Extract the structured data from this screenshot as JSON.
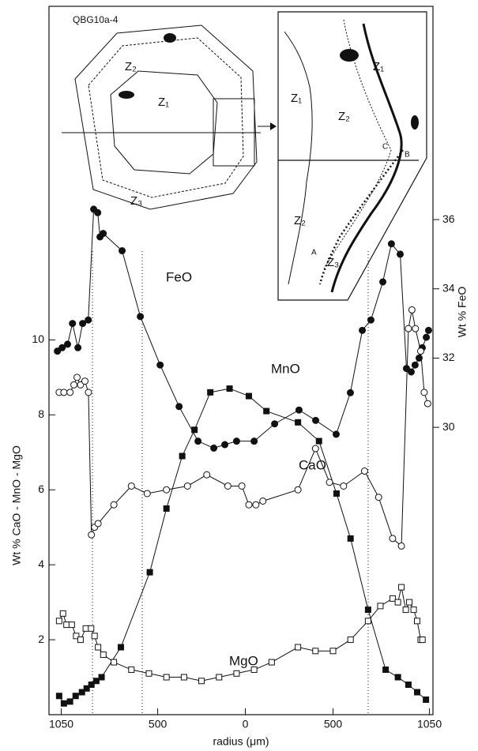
{
  "chart_data": {
    "type": "line",
    "x_label": "radius (μm)",
    "y_label": "Wt % CaO - MnO - MgO",
    "y2_label": "Wt % FeO",
    "xlim": [
      -1120,
      1070
    ],
    "xticks": [
      {
        "value": -1050,
        "label": "1050"
      },
      {
        "value": -500,
        "label": "500"
      },
      0,
      500,
      1050
    ],
    "ylim": [
      0,
      18.9
    ],
    "yticks": [
      2,
      4,
      6,
      8,
      10
    ],
    "y2lim": [
      21.7,
      42.16
    ],
    "y2ticks": [
      30,
      32,
      34,
      36
    ],
    "grid": false,
    "series": [
      {
        "name": "FeO",
        "color": "#111111",
        "axis": "y2",
        "marker": "circle",
        "filled": true,
        "x": [
          -1072,
          -1045,
          -1014,
          -986,
          -955,
          -928,
          -896,
          -865,
          -842,
          -829,
          -811,
          -703,
          -599,
          -486,
          -378,
          -270,
          -180,
          -117,
          -50,
          50,
          167,
          306,
          401,
          518,
          599,
          667,
          716,
          784,
          833,
          883,
          919,
          946,
          968,
          991,
          1009,
          1032,
          1045
        ],
        "values": [
          32.2,
          32.3,
          32.4,
          33.0,
          32.3,
          33.0,
          33.1,
          36.3,
          36.2,
          35.5,
          35.6,
          35.1,
          33.2,
          31.8,
          30.6,
          29.6,
          29.4,
          29.5,
          29.6,
          29.6,
          30.1,
          30.5,
          30.2,
          29.8,
          31.0,
          32.8,
          33.1,
          34.2,
          35.3,
          35.0,
          31.7,
          31.6,
          31.8,
          32.0,
          32.3,
          32.6,
          32.8
        ]
      },
      {
        "name": "MnO",
        "color": "#111111",
        "axis": "y",
        "marker": "square",
        "filled": true,
        "x": [
          -1062,
          -1035,
          -1000,
          -968,
          -932,
          -905,
          -878,
          -850,
          -820,
          -710,
          -545,
          -450,
          -360,
          -290,
          -200,
          -90,
          20,
          120,
          300,
          420,
          520,
          600,
          700,
          800,
          870,
          930,
          980,
          1030
        ],
        "values": [
          0.5,
          0.3,
          0.35,
          0.5,
          0.6,
          0.7,
          0.8,
          0.9,
          1.0,
          1.8,
          3.8,
          5.5,
          6.9,
          7.6,
          8.6,
          8.7,
          8.5,
          8.1,
          7.8,
          7.3,
          5.9,
          4.7,
          2.8,
          1.2,
          1.0,
          0.8,
          0.6,
          0.4
        ]
      },
      {
        "name": "CaO",
        "color": "#111111",
        "axis": "y",
        "marker": "circle",
        "filled": false,
        "x": [
          -1062,
          -1035,
          -1000,
          -978,
          -960,
          -940,
          -915,
          -895,
          -878,
          -860,
          -840,
          -750,
          -650,
          -560,
          -450,
          -330,
          -220,
          -100,
          -20,
          20,
          60,
          100,
          300,
          400,
          480,
          560,
          680,
          760,
          840,
          890,
          930,
          950,
          970,
          1000,
          1020,
          1040
        ],
        "values": [
          8.6,
          8.6,
          8.6,
          8.8,
          9.0,
          8.8,
          8.9,
          8.6,
          4.8,
          5.0,
          5.1,
          5.6,
          6.1,
          5.9,
          6.0,
          6.1,
          6.4,
          6.1,
          6.1,
          5.6,
          5.6,
          5.7,
          6.0,
          7.1,
          6.2,
          6.1,
          6.5,
          5.8,
          4.7,
          4.5,
          10.3,
          10.8,
          10.3,
          9.7,
          8.6,
          8.3
        ]
      },
      {
        "name": "MgO",
        "color": "#111111",
        "axis": "y",
        "marker": "square",
        "filled": false,
        "x": [
          -1062,
          -1040,
          -1020,
          -990,
          -965,
          -940,
          -910,
          -880,
          -860,
          -840,
          -810,
          -750,
          -650,
          -550,
          -450,
          -350,
          -250,
          -150,
          -50,
          50,
          150,
          300,
          400,
          500,
          600,
          700,
          770,
          840,
          870,
          890,
          915,
          935,
          960,
          980,
          1000,
          1010
        ],
        "values": [
          2.5,
          2.7,
          2.4,
          2.4,
          2.1,
          2.0,
          2.3,
          2.3,
          2.1,
          1.8,
          1.6,
          1.4,
          1.2,
          1.1,
          1.0,
          1.0,
          0.9,
          1.0,
          1.1,
          1.2,
          1.4,
          1.8,
          1.7,
          1.7,
          2.0,
          2.5,
          2.9,
          3.1,
          3.0,
          3.4,
          2.8,
          3.0,
          2.8,
          2.5,
          2.0,
          2.0
        ]
      }
    ],
    "inset": {
      "title": "QBG10a-4",
      "labels": [
        "Z₂",
        "Z₁",
        "Z₃",
        "Z₁",
        "Z₂",
        "Z₁",
        "C",
        "B",
        "Z₂",
        "A",
        "Z₃"
      ]
    }
  }
}
